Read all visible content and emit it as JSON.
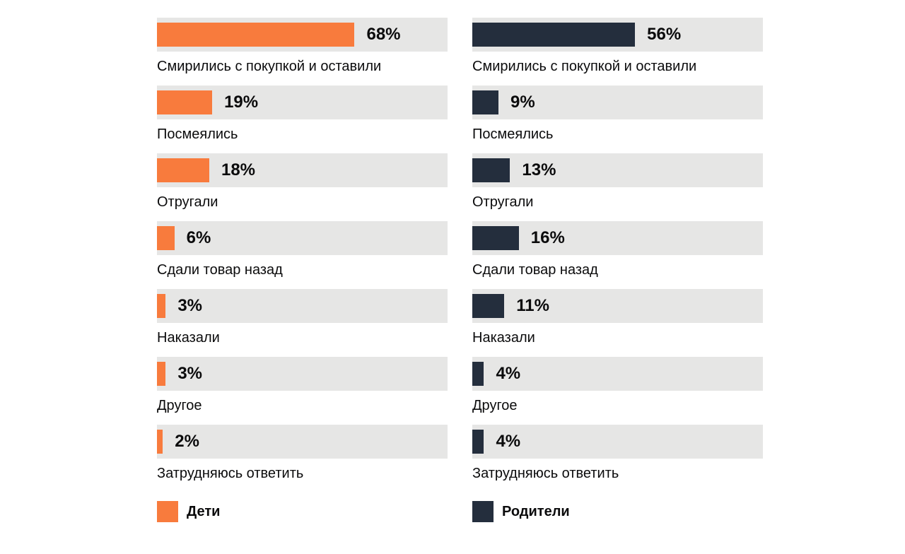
{
  "chart_data": {
    "type": "bar",
    "orientation": "horizontal",
    "title": "",
    "unit": "%",
    "xlim": [
      0,
      100
    ],
    "grid": false,
    "legend_position": "bottom",
    "track_color": "#e6e6e5",
    "text_color": "#0b0b0c",
    "categories": [
      "Смирились с покупкой и оставили",
      "Посмеялись",
      "Отругали",
      "Сдали товар назад",
      "Наказали",
      "Другое",
      "Затрудняюсь ответить"
    ],
    "series": [
      {
        "name": "Дети",
        "color": "#f87b3d",
        "values": [
          68,
          19,
          18,
          6,
          3,
          3,
          2
        ]
      },
      {
        "name": "Родители",
        "color": "#242e3d",
        "values": [
          56,
          9,
          13,
          16,
          11,
          4,
          4
        ]
      }
    ]
  }
}
